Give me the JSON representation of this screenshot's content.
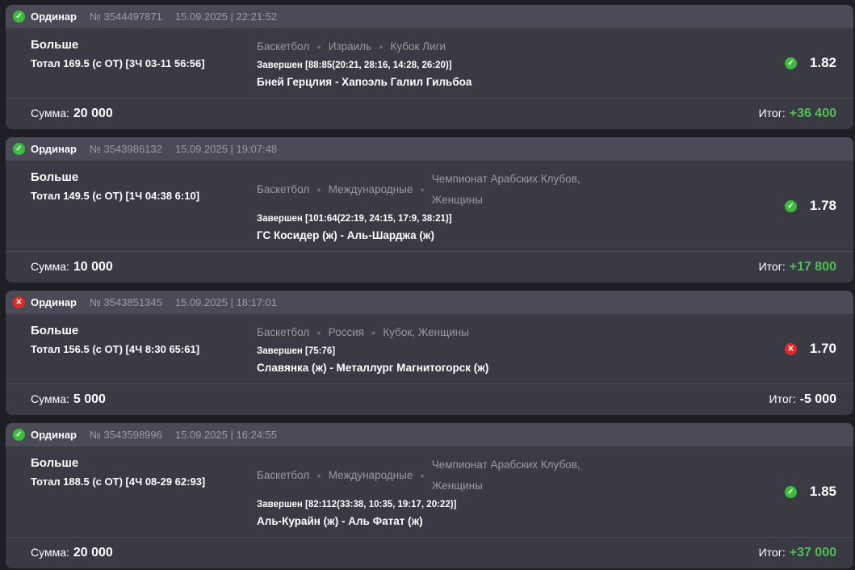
{
  "labels": {
    "sum": "Сумма:",
    "total": "Итог:"
  },
  "colors": {
    "win": "#4ec24e",
    "lose": "#e02828",
    "ok_icon": "#3dbb3d"
  },
  "bets": [
    {
      "status": "won",
      "type": "Ординар",
      "number": "№ 3544497871",
      "datetime": "15.09.2025 | 22:21:52",
      "pick": "Больше",
      "market": "Тотал 169.5 (с ОТ) [3Ч 03-11 56:56]",
      "league": [
        "Баскетбол",
        "Израиль",
        "Кубок Лиги"
      ],
      "result": "Завершен [88:85(20:21, 28:16, 14:28, 26:20)]",
      "teams": "Бней Герцлия - Хапоэль Галил Гильбоа",
      "odds": "1.82",
      "sum": "20 000",
      "total": "+36 400"
    },
    {
      "status": "won",
      "type": "Ординар",
      "number": "№ 3543986132",
      "datetime": "15.09.2025 | 19:07:48",
      "pick": "Больше",
      "market": "Тотал 149.5 (с ОТ) [1Ч 04:38 6:10]",
      "league": [
        "Баскетбол",
        "Международные",
        "Чемпионат Арабских Клубов, Женщины"
      ],
      "result": "Завершен [101:64(22:19, 24:15, 17:9, 38:21)]",
      "teams": "ГС Косидер (ж) - Аль-Шарджа (ж)",
      "odds": "1.78",
      "sum": "10 000",
      "total": "+17 800"
    },
    {
      "status": "lost",
      "type": "Ординар",
      "number": "№ 3543851345",
      "datetime": "15.09.2025 | 18:17:01",
      "pick": "Больше",
      "market": "Тотал 156.5 (с ОТ) [4Ч 8:30 65:61]",
      "league": [
        "Баскетбол",
        "Россия",
        "Кубок, Женщины"
      ],
      "result": "Завершен [75:76]",
      "teams": "Славянка (ж) - Металлург Магнитогорск (ж)",
      "odds": "1.70",
      "sum": "5 000",
      "total": "-5 000"
    },
    {
      "status": "won",
      "type": "Ординар",
      "number": "№ 3543598996",
      "datetime": "15.09.2025 | 16:24:55",
      "pick": "Больше",
      "market": "Тотал 188.5 (с ОТ) [4Ч 08-29 62:93]",
      "league": [
        "Баскетбол",
        "Международные",
        "Чемпионат Арабских Клубов, Женщины"
      ],
      "result": "Завершен [82:112(33:38, 10:35, 19:17, 20:22)]",
      "teams": "Аль-Курайн (ж) - Аль Фатат (ж)",
      "odds": "1.85",
      "sum": "20 000",
      "total": "+37 000"
    }
  ]
}
